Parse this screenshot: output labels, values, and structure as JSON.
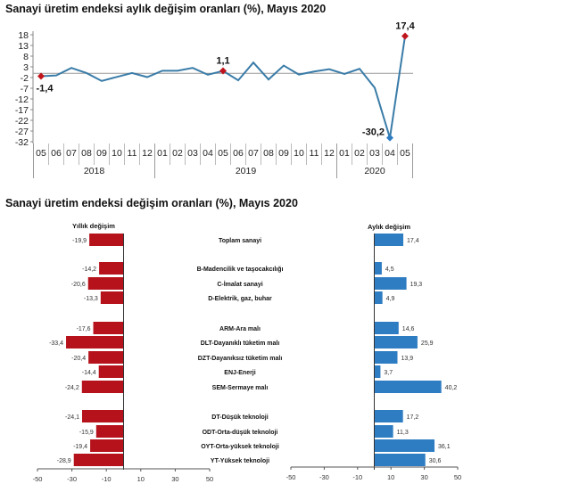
{
  "chart_data": [
    {
      "type": "line",
      "title": "Sanayi üretim endeksi  aylık değişim oranları (%), Mayıs 2020",
      "x": [
        "05",
        "06",
        "07",
        "08",
        "09",
        "10",
        "11",
        "12",
        "01",
        "02",
        "03",
        "04",
        "05",
        "06",
        "07",
        "08",
        "09",
        "10",
        "11",
        "12",
        "01",
        "02",
        "03",
        "04",
        "05"
      ],
      "year_groups": [
        {
          "label": "2018",
          "count": 8
        },
        {
          "label": "2019",
          "count": 12
        },
        {
          "label": "2020",
          "count": 5
        }
      ],
      "values": [
        -1.4,
        -1.0,
        2.5,
        0.1,
        -3.6,
        -1.7,
        0.1,
        -1.8,
        1.2,
        1.2,
        2.5,
        -0.7,
        1.1,
        -3.3,
        5.0,
        -2.9,
        3.6,
        -0.6,
        0.8,
        1.9,
        -0.3,
        2.1,
        -6.8,
        -30.2,
        17.4
      ],
      "yticks": [
        18,
        13,
        8,
        3,
        -2,
        -7,
        -12,
        -17,
        -22,
        -27,
        -32
      ],
      "ylim": [
        -32,
        18
      ],
      "annotations": [
        {
          "index": 0,
          "label": "-1,4",
          "marker_color": "#c0141c"
        },
        {
          "index": 12,
          "label": "1,1",
          "marker_color": "#c0141c"
        },
        {
          "index": 23,
          "label": "-30,2",
          "marker_color": "#2e7dc2"
        },
        {
          "index": 24,
          "label": "17,4",
          "marker_color": "#c0141c"
        }
      ],
      "line_color": "#3a7ca8",
      "grid": false
    },
    {
      "type": "bar",
      "orientation": "horizontal",
      "title": "Sanayi üretim endeksi  değişim oranları (%), Mayıs 2020",
      "categories": [
        "Toplam sanayi",
        "B-Madencilik ve taşocakcılığı",
        "C-İmalat sanayi",
        "D-Elektrik, gaz, buhar",
        "ARM-Ara malı",
        "DLT-Dayanıklı tüketim malı",
        "DZT-Dayanıksız tüketim malı",
        "ENJ-Enerji",
        "SEM-Sermaye malı",
        "DT-Düşük teknoloji",
        "ODT-Orta-düşük teknoloji",
        "OYT-Orta-yüksek teknoloji",
        "YT-Yüksek teknoloji"
      ],
      "series": [
        {
          "name": "Yıllık değişim",
          "color": "#b5121b",
          "values": [
            -19.9,
            -14.2,
            -20.6,
            -13.3,
            -17.6,
            -33.4,
            -20.4,
            -14.4,
            -24.2,
            -24.1,
            -15.9,
            -19.4,
            -28.9
          ],
          "labels": [
            "-19,9",
            "-14,2",
            "-20,6",
            "-13,3",
            "-17,6",
            "-33,4",
            "-20,4",
            "-14,4",
            "-24,2",
            "-24,1",
            "-15,9",
            "-19,4",
            "-28,9"
          ]
        },
        {
          "name": "Aylık değişim",
          "color": "#2e7dc2",
          "values": [
            17.4,
            4.5,
            19.3,
            4.9,
            14.6,
            25.9,
            13.9,
            3.7,
            40.2,
            17.2,
            11.3,
            36.1,
            30.6
          ],
          "labels": [
            "17,4",
            "4,5",
            "19,3",
            "4,9",
            "14,6",
            "25,9",
            "13,9",
            "3,7",
            "40,2",
            "17,2",
            "11,3",
            "36,1",
            "30,6"
          ]
        }
      ],
      "xticks": [
        "-50",
        "-30",
        "-10",
        "10",
        "30",
        "50"
      ],
      "xlim": [
        -50,
        50
      ],
      "grid": false
    }
  ]
}
